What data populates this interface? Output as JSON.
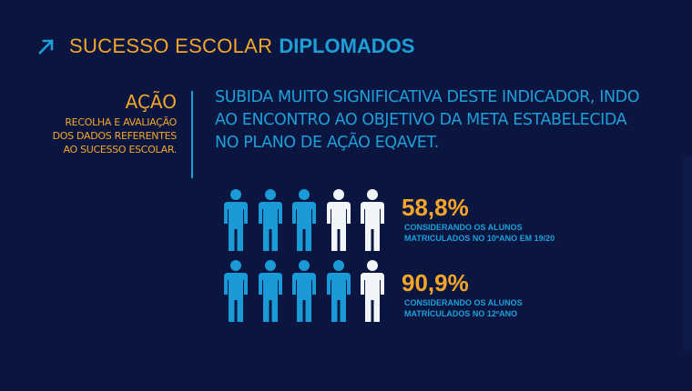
{
  "header": {
    "title_light": "SUCESSO ESCOLAR",
    "title_bold": "DIPLOMADOS",
    "icon": "arrow-up-right-icon"
  },
  "action": {
    "title": "AÇÃO",
    "lines": [
      "RECOLHA E AVALIAÇÃO",
      "DOS DADOS REFERENTES",
      "AO SUCESSO ESCOLAR."
    ]
  },
  "statement": {
    "lines": [
      "SUBIDA MUITO SIGNIFICATIVA DESTE INDICADOR, INDO",
      "AO ENCONTRO AO OBJETIVO DA META ESTABELECIDA",
      "NO PLANO DE AÇÃO EQAVET."
    ]
  },
  "stats": [
    {
      "value": "58,8%",
      "note_lines": [
        "CONSIDERANDO OS ALUNOS",
        "MATRICULADOS NO 10ºANO EM 19/20"
      ],
      "filled": 3,
      "total": 5
    },
    {
      "value": "90,9%",
      "note_lines": [
        "CONSIDERANDO OS ALUNOS",
        "MATRÍCULADOS NO 12ºANO"
      ],
      "filled": 4,
      "total": 5
    }
  ],
  "colors": {
    "background": "#0b1640",
    "accent_orange": "#f4a62a",
    "accent_blue": "#1e9fd8",
    "person_blue": "#1a9ad6",
    "person_white": "#f2f5f7"
  }
}
